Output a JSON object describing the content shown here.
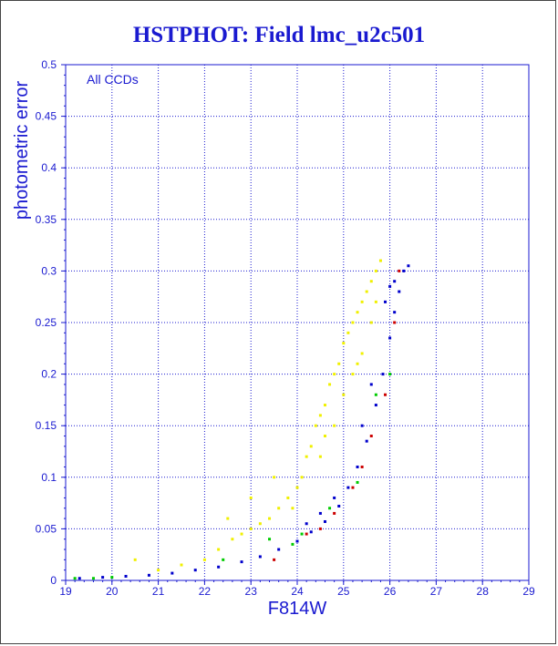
{
  "title": "HSTPHOT: Field lmc_u2c501",
  "chart_data": {
    "type": "scatter",
    "title": "HSTPHOT: Field lmc_u2c501",
    "xlabel": "F814W",
    "ylabel": "photometric error",
    "annotation": "All CCDs",
    "xlim": [
      19,
      29
    ],
    "ylim": [
      0,
      0.5
    ],
    "x_ticks": [
      "19",
      "20",
      "21",
      "22",
      "23",
      "24",
      "25",
      "26",
      "27",
      "28",
      "29"
    ],
    "y_ticks": [
      "0",
      "0.05",
      "0.1",
      "0.15",
      "0.2",
      "0.25",
      "0.3",
      "0.35",
      "0.4",
      "0.45",
      "0.5"
    ],
    "grid": true,
    "colors": {
      "axis": "#1a1ad0",
      "grid": "#1a1ad0"
    },
    "series": [
      {
        "color": "#f0f000",
        "points": [
          [
            20.5,
            0.02
          ],
          [
            21.0,
            0.01
          ],
          [
            21.5,
            0.015
          ],
          [
            22.0,
            0.02
          ],
          [
            22.3,
            0.03
          ],
          [
            22.6,
            0.04
          ],
          [
            22.8,
            0.045
          ],
          [
            23.0,
            0.05
          ],
          [
            23.2,
            0.055
          ],
          [
            23.4,
            0.06
          ],
          [
            23.6,
            0.07
          ],
          [
            23.8,
            0.08
          ],
          [
            24.0,
            0.09
          ],
          [
            24.1,
            0.1
          ],
          [
            24.2,
            0.12
          ],
          [
            24.3,
            0.13
          ],
          [
            24.4,
            0.15
          ],
          [
            24.5,
            0.16
          ],
          [
            24.6,
            0.17
          ],
          [
            24.7,
            0.19
          ],
          [
            24.8,
            0.2
          ],
          [
            24.9,
            0.21
          ],
          [
            25.0,
            0.23
          ],
          [
            25.1,
            0.24
          ],
          [
            25.2,
            0.25
          ],
          [
            25.3,
            0.26
          ],
          [
            25.4,
            0.27
          ],
          [
            25.5,
            0.28
          ],
          [
            25.6,
            0.29
          ],
          [
            25.7,
            0.3
          ],
          [
            25.8,
            0.31
          ],
          [
            23.5,
            0.1
          ],
          [
            23.0,
            0.08
          ],
          [
            22.5,
            0.06
          ],
          [
            24.8,
            0.15
          ],
          [
            25.0,
            0.18
          ],
          [
            25.2,
            0.2
          ],
          [
            25.4,
            0.22
          ],
          [
            25.6,
            0.25
          ],
          [
            24.5,
            0.12
          ],
          [
            23.9,
            0.07
          ],
          [
            24.6,
            0.14
          ],
          [
            25.3,
            0.21
          ],
          [
            25.7,
            0.27
          ]
        ]
      },
      {
        "color": "#0000cc",
        "points": [
          [
            19.3,
            0.002
          ],
          [
            19.8,
            0.003
          ],
          [
            20.3,
            0.004
          ],
          [
            20.8,
            0.005
          ],
          [
            21.3,
            0.007
          ],
          [
            21.8,
            0.01
          ],
          [
            22.3,
            0.013
          ],
          [
            22.8,
            0.018
          ],
          [
            23.2,
            0.023
          ],
          [
            23.6,
            0.03
          ],
          [
            24.0,
            0.038
          ],
          [
            24.3,
            0.047
          ],
          [
            24.6,
            0.057
          ],
          [
            24.9,
            0.072
          ],
          [
            25.1,
            0.09
          ],
          [
            25.3,
            0.11
          ],
          [
            25.5,
            0.135
          ],
          [
            25.7,
            0.17
          ],
          [
            25.85,
            0.2
          ],
          [
            26.0,
            0.235
          ],
          [
            26.1,
            0.26
          ],
          [
            26.2,
            0.28
          ],
          [
            26.3,
            0.3
          ],
          [
            26.4,
            0.305
          ],
          [
            26.1,
            0.29
          ],
          [
            26.0,
            0.285
          ],
          [
            25.9,
            0.27
          ],
          [
            25.6,
            0.19
          ],
          [
            25.4,
            0.15
          ],
          [
            24.8,
            0.08
          ],
          [
            24.5,
            0.065
          ],
          [
            24.2,
            0.055
          ]
        ]
      },
      {
        "color": "#cc0000",
        "points": [
          [
            23.5,
            0.02
          ],
          [
            24.2,
            0.045
          ],
          [
            24.8,
            0.065
          ],
          [
            25.2,
            0.09
          ],
          [
            25.6,
            0.14
          ],
          [
            25.9,
            0.18
          ],
          [
            26.1,
            0.25
          ],
          [
            26.2,
            0.3
          ],
          [
            25.4,
            0.11
          ],
          [
            24.5,
            0.05
          ]
        ]
      },
      {
        "color": "#00cc00",
        "points": [
          [
            19.2,
            0.002
          ],
          [
            19.6,
            0.002
          ],
          [
            20.0,
            0.003
          ],
          [
            22.4,
            0.02
          ],
          [
            23.4,
            0.04
          ],
          [
            24.1,
            0.045
          ],
          [
            24.7,
            0.07
          ],
          [
            25.3,
            0.095
          ],
          [
            25.7,
            0.18
          ],
          [
            26.0,
            0.2
          ],
          [
            23.9,
            0.035
          ]
        ]
      }
    ]
  }
}
